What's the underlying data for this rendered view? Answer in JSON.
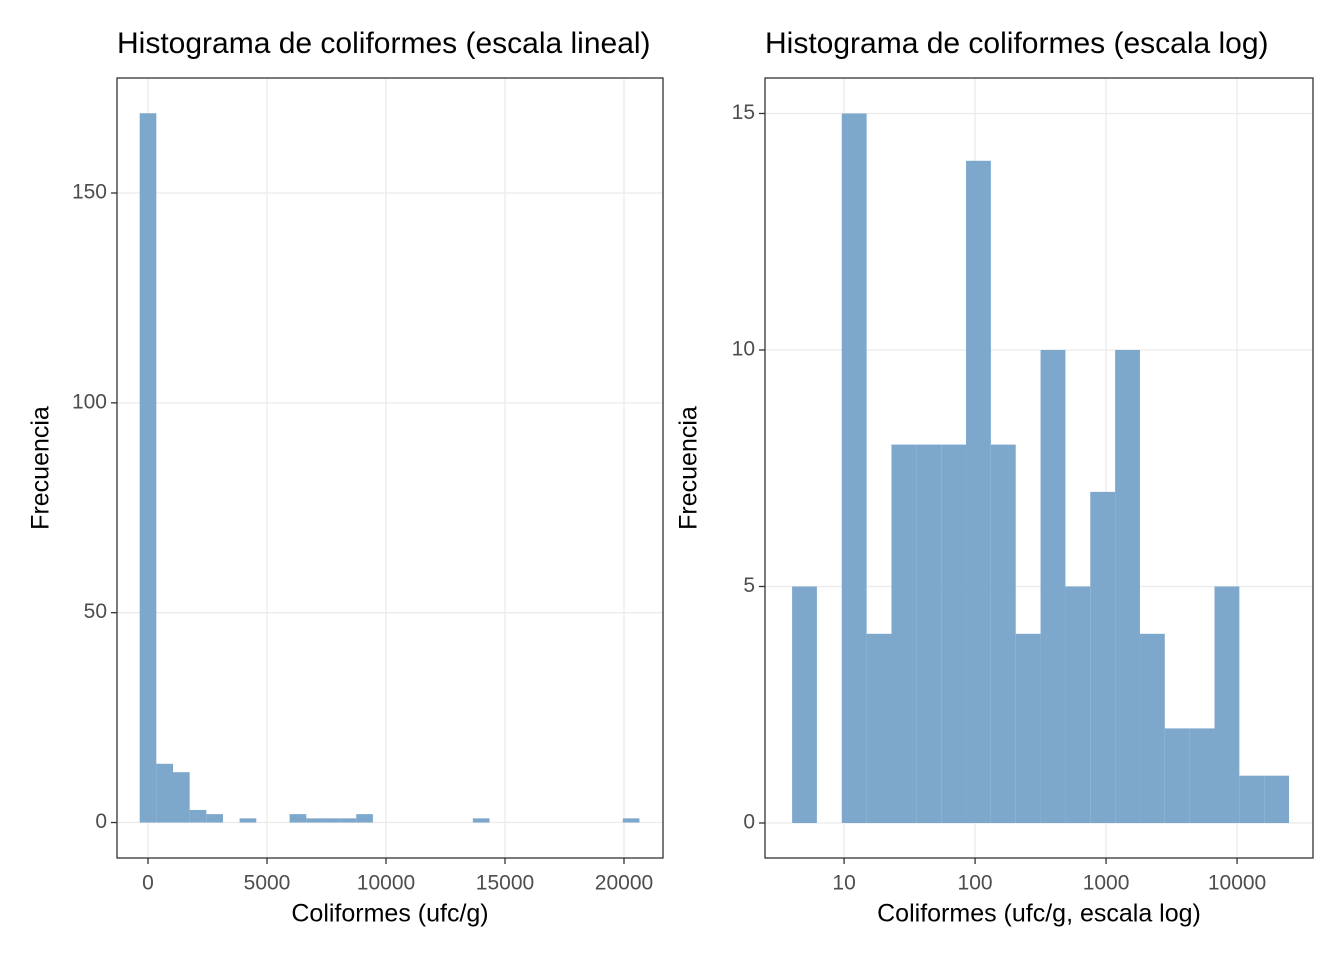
{
  "chart_data": [
    {
      "type": "histogram",
      "title": "Histograma de coliformes (escala lineal)",
      "xlabel": "Coliformes (ufc/g)",
      "ylabel": "Frecuencia",
      "bins": [
        -350,
        350,
        1050,
        1750,
        2450,
        3150,
        3850,
        4550,
        5250,
        5950,
        6650,
        7350,
        8050,
        8750,
        9450,
        10150,
        10850,
        11550,
        12250,
        12950,
        13650,
        14350,
        15050,
        15750,
        16450,
        17150,
        17850,
        18550,
        19250,
        19950,
        20650
      ],
      "counts": [
        169,
        14,
        12,
        3,
        2,
        0,
        1,
        0,
        0,
        2,
        1,
        1,
        1,
        2,
        0,
        0,
        0,
        0,
        0,
        0,
        1,
        0,
        0,
        0,
        0,
        0,
        0,
        0,
        0,
        1
      ],
      "color": "#7ea7cc",
      "log_x": false,
      "grid": true,
      "xlim": [
        -1303,
        21639
      ],
      "xticks": [
        0,
        5000,
        10000,
        15000,
        20000
      ],
      "ylim": [
        -8.45,
        177.4
      ],
      "yticks": [
        0,
        50,
        100,
        150
      ]
    },
    {
      "type": "histogram",
      "title": "Histograma de coliformes (escala log)",
      "xlabel": "Coliformes (ufc/g, escala log)",
      "ylabel": "Frecuencia",
      "bins": [
        4.01,
        6.2,
        9.6,
        14.86,
        23.0,
        35.6,
        55.1,
        85.3,
        132.0,
        204.3,
        316.2,
        489.4,
        757.5,
        1172.4,
        1814.6,
        2808.6,
        4346.8,
        6728,
        10413,
        16117,
        24946
      ],
      "counts": [
        5,
        0,
        15,
        4,
        8,
        8,
        8,
        14,
        8,
        4,
        10,
        5,
        7,
        10,
        4,
        2,
        2,
        5,
        1,
        1
      ],
      "color": "#7ea7cc",
      "log_x": true,
      "grid": true,
      "xlim": [
        2.49,
        38000
      ],
      "xticks": [
        10,
        100,
        1000,
        10000
      ],
      "ylim": [
        -0.74,
        15.75
      ],
      "yticks": [
        0,
        5,
        10,
        15
      ]
    }
  ]
}
